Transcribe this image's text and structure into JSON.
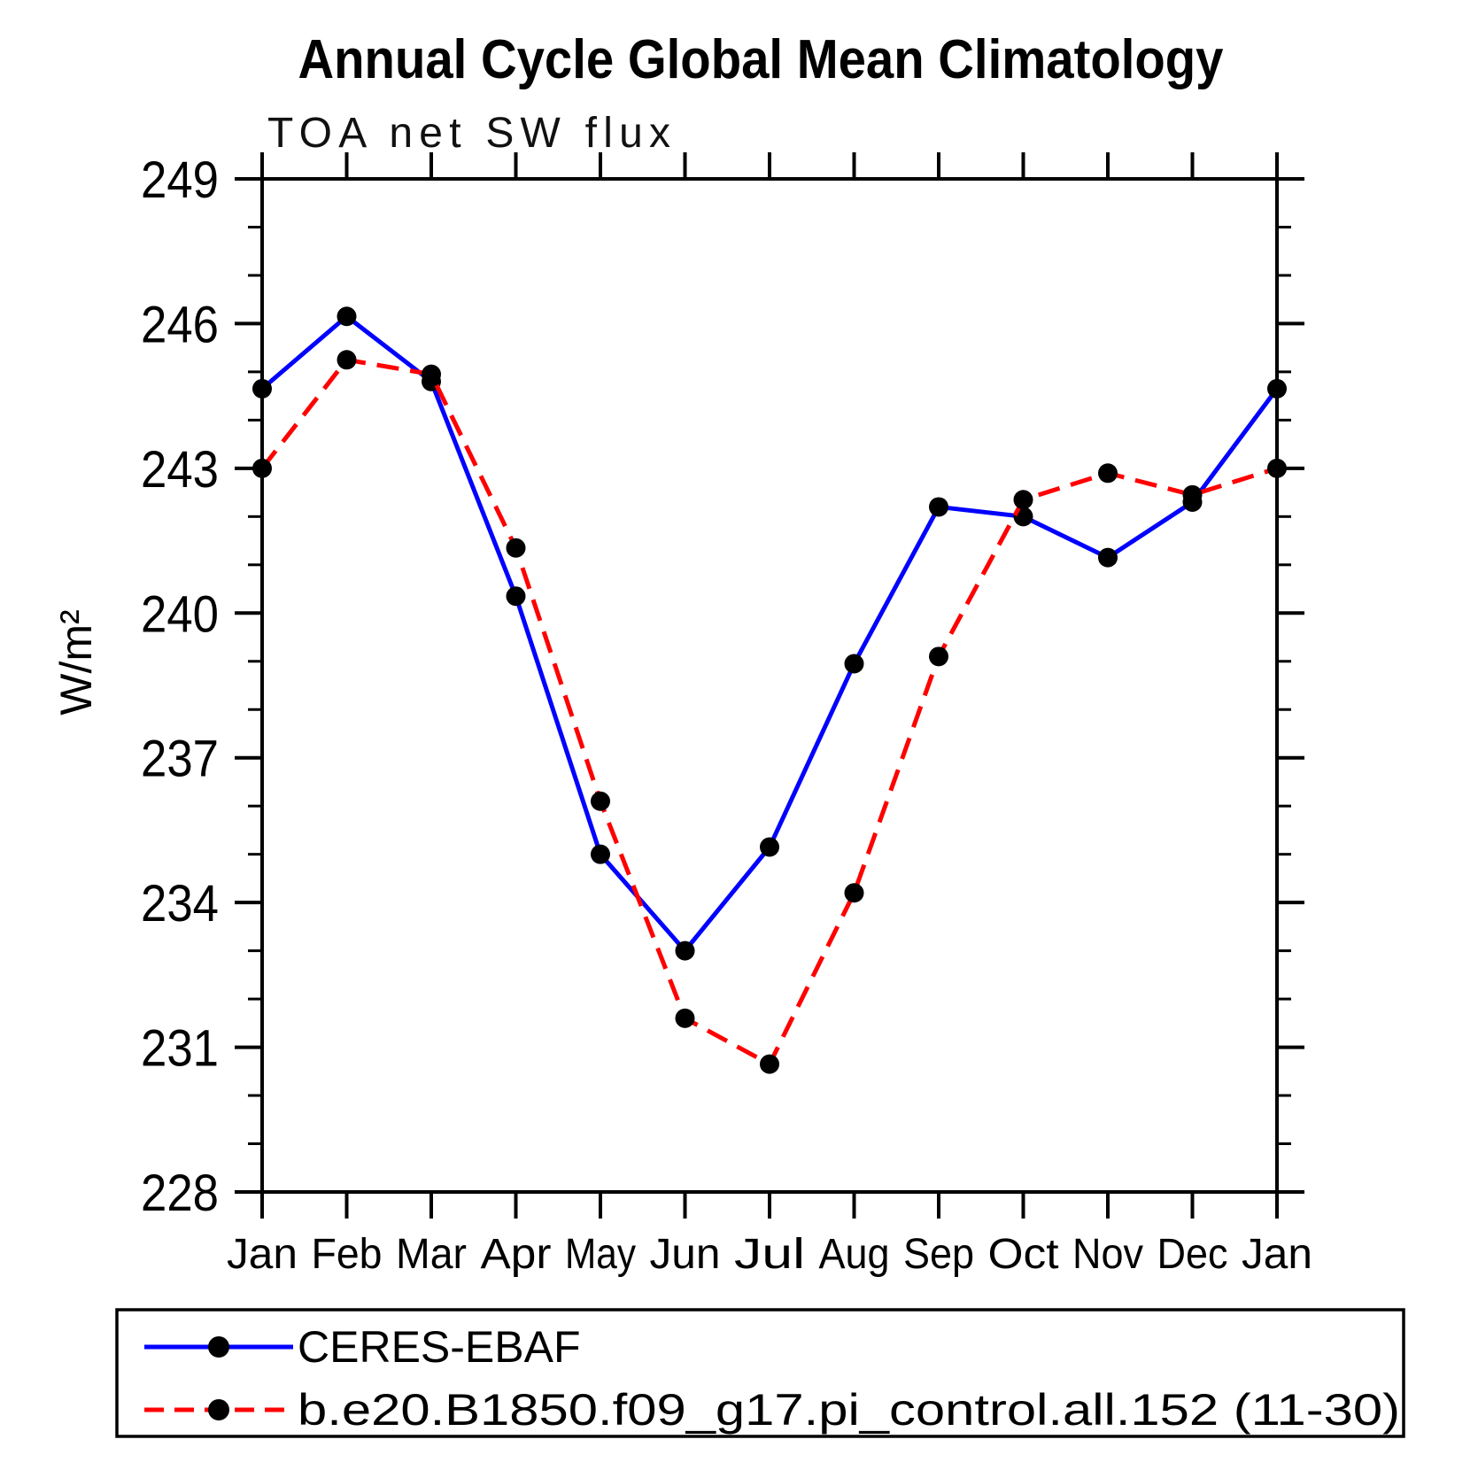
{
  "title": "Annual Cycle Global Mean Climatology",
  "subtitle": "TOA net SW flux",
  "ylabel": "W/m²",
  "colors": {
    "obs_line": "#0000ff",
    "model_line": "#ff0000",
    "marker": "#000000",
    "axis": "#000000"
  },
  "chart_data": {
    "type": "line",
    "categories": [
      "Jan",
      "Feb",
      "Mar",
      "Apr",
      "May",
      "Jun",
      "Jul",
      "Aug",
      "Sep",
      "Oct",
      "Nov",
      "Dec",
      "Jan"
    ],
    "xlabel": "",
    "ylabel": "W/m²",
    "ylim": [
      228,
      249
    ],
    "ytick_major": [
      228,
      231,
      234,
      237,
      240,
      243,
      246,
      249
    ],
    "ytick_minor_step": 1,
    "grid": false,
    "legend_position": "bottom",
    "series": [
      {
        "name": "CERES-EBAF",
        "color": "#0000ff",
        "style": "solid",
        "marker": "dot",
        "values": [
          244.65,
          246.15,
          244.8,
          240.35,
          235.0,
          233.0,
          235.15,
          238.95,
          242.2,
          242.0,
          241.15,
          242.3,
          244.65
        ]
      },
      {
        "name": "b.e20.B1850.f09_g17.pi_control.all.152 (11-30)",
        "color": "#ff0000",
        "style": "dashed",
        "marker": "dot",
        "values": [
          243.0,
          245.25,
          244.95,
          241.35,
          236.1,
          231.6,
          230.65,
          234.2,
          239.1,
          242.35,
          242.9,
          242.45,
          243.0
        ]
      }
    ]
  }
}
